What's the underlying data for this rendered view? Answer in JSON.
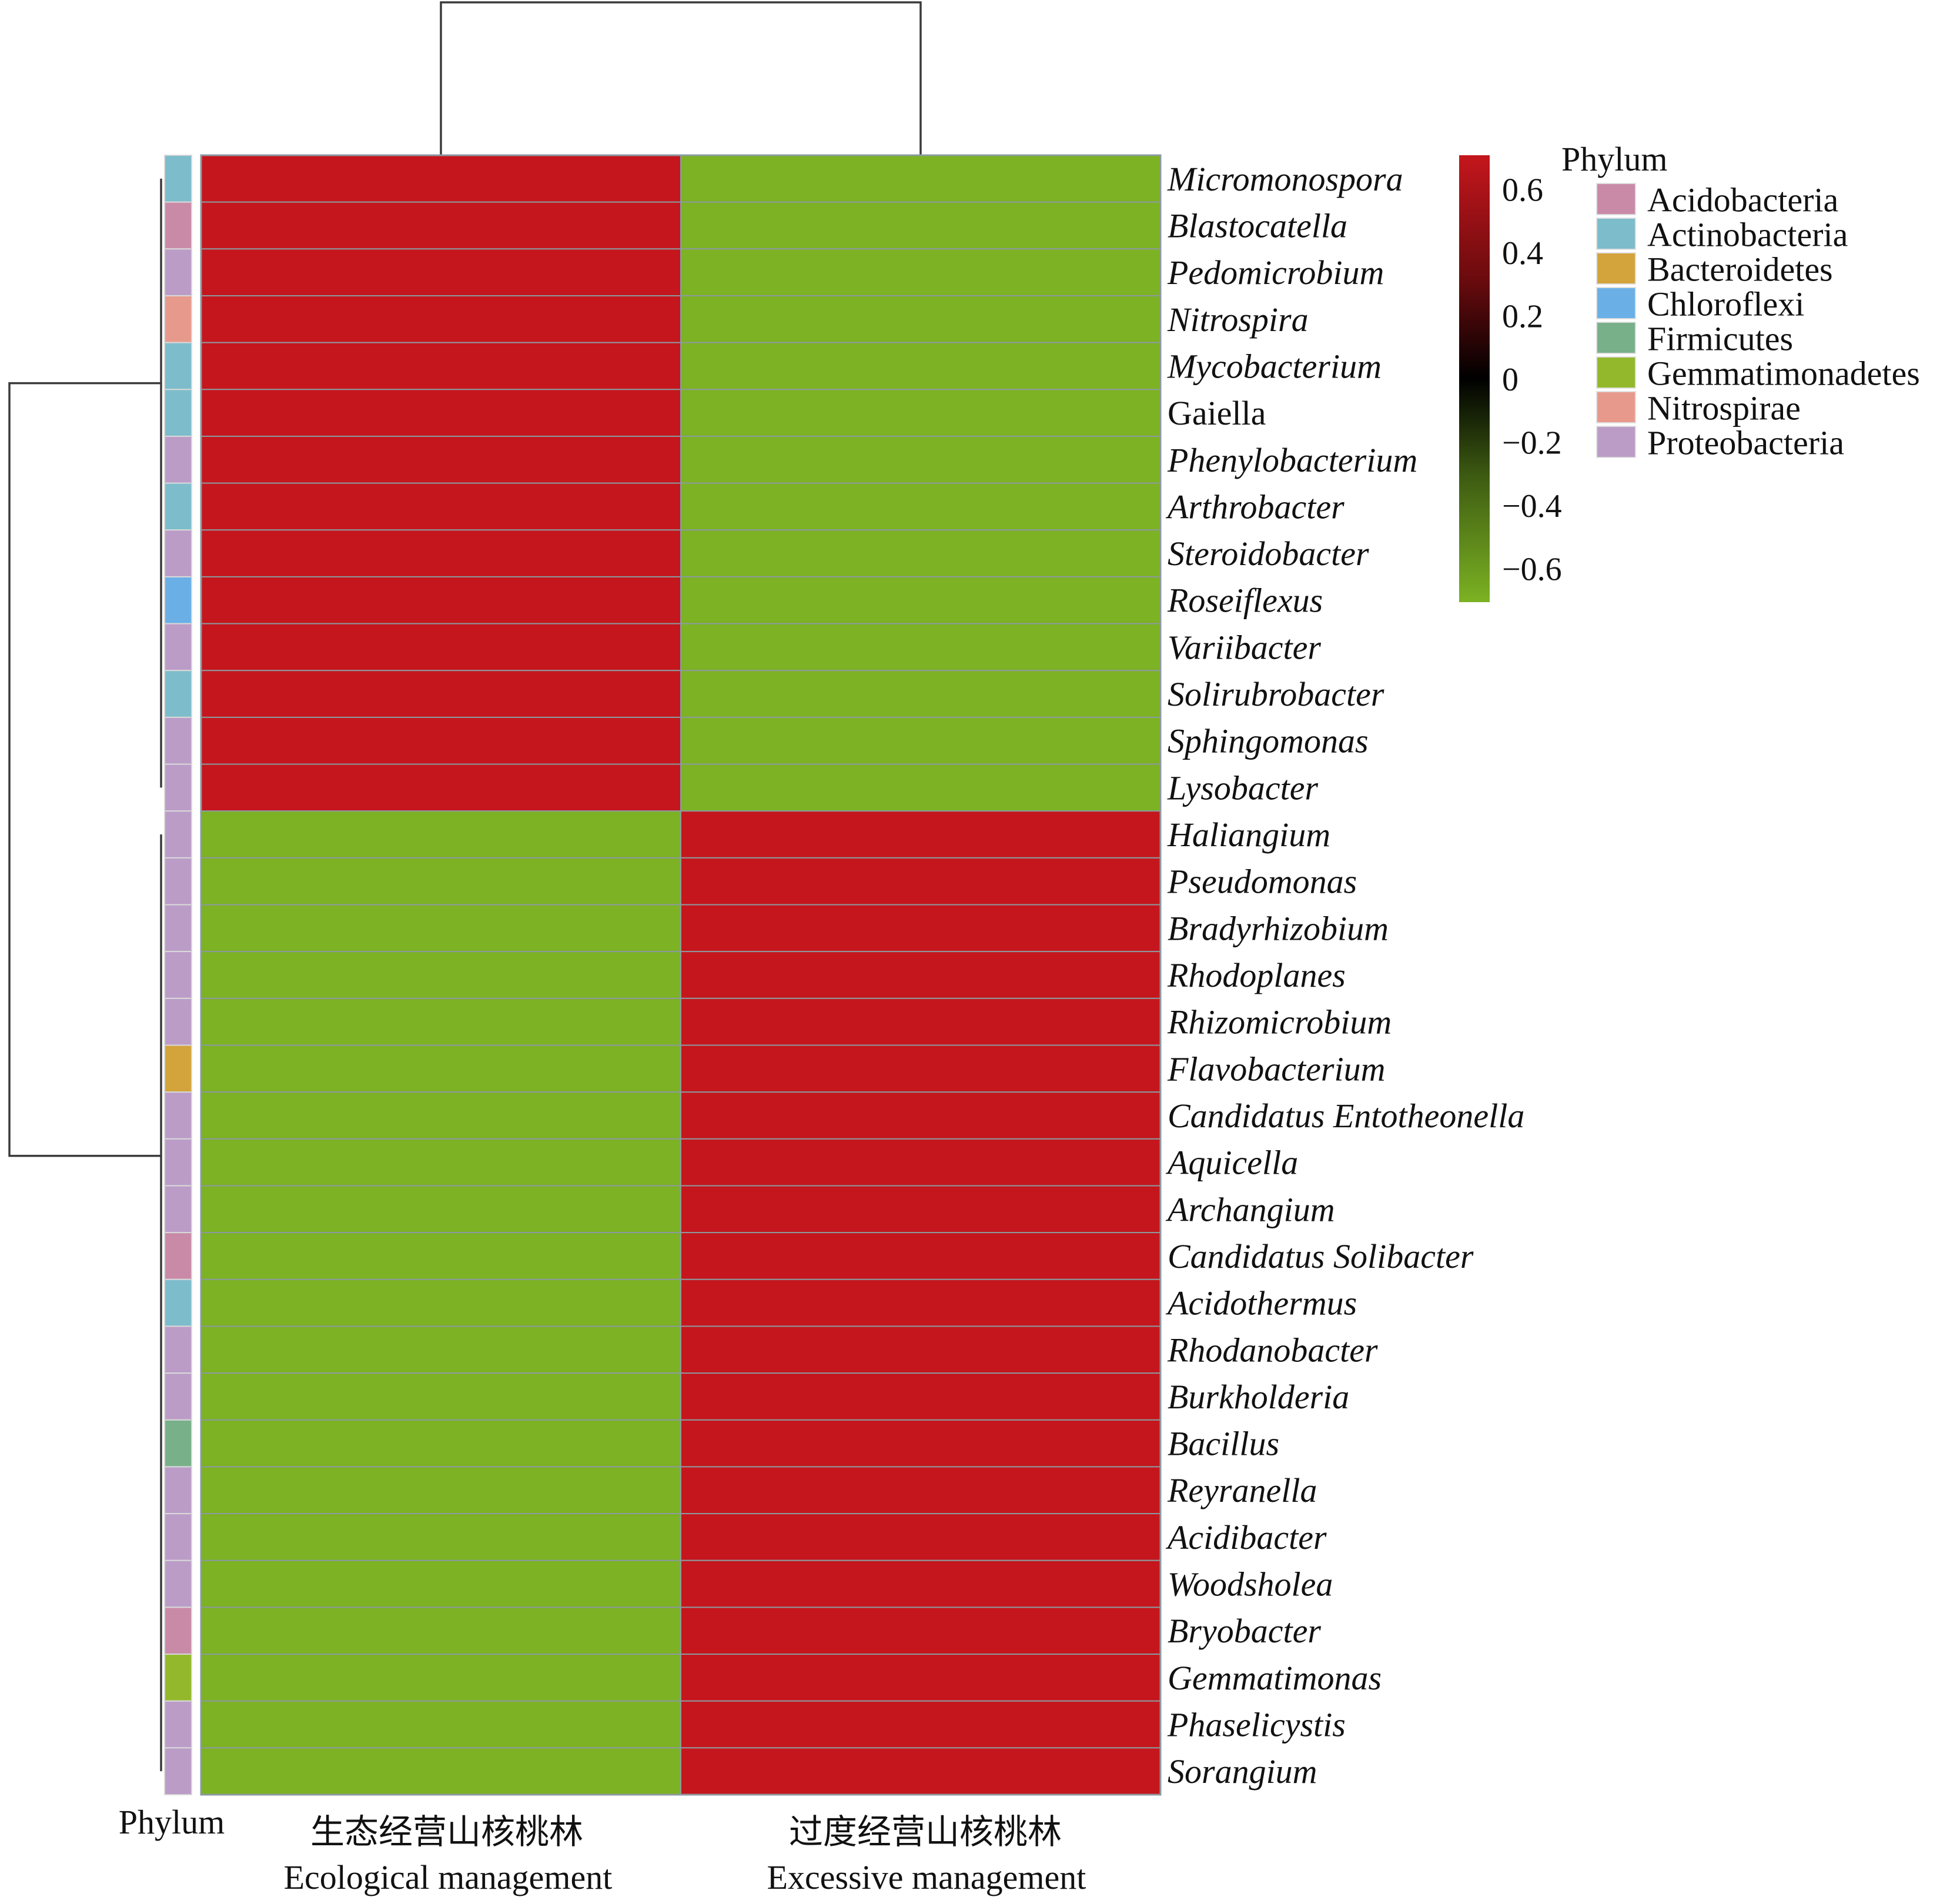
{
  "chart_data": {
    "type": "heatmap",
    "columns": [
      {
        "name_zh": "生态经营山核桃林",
        "name_en": "Ecological management"
      },
      {
        "name_zh": "过度经营山核桃林",
        "name_en": "Excessive management"
      }
    ],
    "rows": [
      {
        "genus": "Micromonospora",
        "italic": true,
        "phylum": "Actinobacteria",
        "values": [
          0.707,
          -0.707
        ]
      },
      {
        "genus": "Blastocatella",
        "italic": true,
        "phylum": "Acidobacteria",
        "values": [
          0.707,
          -0.707
        ]
      },
      {
        "genus": "Pedomicrobium",
        "italic": true,
        "phylum": "Proteobacteria",
        "values": [
          0.707,
          -0.707
        ]
      },
      {
        "genus": "Nitrospira",
        "italic": true,
        "phylum": "Nitrospirae",
        "values": [
          0.707,
          -0.707
        ]
      },
      {
        "genus": "Mycobacterium",
        "italic": true,
        "phylum": "Actinobacteria",
        "values": [
          0.707,
          -0.707
        ]
      },
      {
        "genus": "Gaiella",
        "italic": false,
        "phylum": "Actinobacteria",
        "values": [
          0.707,
          -0.707
        ]
      },
      {
        "genus": "Phenylobacterium",
        "italic": true,
        "phylum": "Proteobacteria",
        "values": [
          0.707,
          -0.707
        ]
      },
      {
        "genus": "Arthrobacter",
        "italic": true,
        "phylum": "Actinobacteria",
        "values": [
          0.707,
          -0.707
        ]
      },
      {
        "genus": "Steroidobacter",
        "italic": true,
        "phylum": "Proteobacteria",
        "values": [
          0.707,
          -0.707
        ]
      },
      {
        "genus": "Roseiflexus",
        "italic": true,
        "phylum": "Chloroflexi",
        "values": [
          0.707,
          -0.707
        ]
      },
      {
        "genus": "Variibacter",
        "italic": true,
        "phylum": "Proteobacteria",
        "values": [
          0.707,
          -0.707
        ]
      },
      {
        "genus": "Solirubrobacter",
        "italic": true,
        "phylum": "Actinobacteria",
        "values": [
          0.707,
          -0.707
        ]
      },
      {
        "genus": "Sphingomonas",
        "italic": true,
        "phylum": "Proteobacteria",
        "values": [
          0.707,
          -0.707
        ]
      },
      {
        "genus": "Lysobacter",
        "italic": true,
        "phylum": "Proteobacteria",
        "values": [
          0.707,
          -0.707
        ]
      },
      {
        "genus": "Haliangium",
        "italic": true,
        "phylum": "Proteobacteria",
        "values": [
          -0.707,
          0.707
        ]
      },
      {
        "genus": "Pseudomonas",
        "italic": true,
        "phylum": "Proteobacteria",
        "values": [
          -0.707,
          0.707
        ]
      },
      {
        "genus": "Bradyrhizobium",
        "italic": true,
        "phylum": "Proteobacteria",
        "values": [
          -0.707,
          0.707
        ]
      },
      {
        "genus": "Rhodoplanes",
        "italic": true,
        "phylum": "Proteobacteria",
        "values": [
          -0.707,
          0.707
        ]
      },
      {
        "genus": "Rhizomicrobium",
        "italic": true,
        "phylum": "Proteobacteria",
        "values": [
          -0.707,
          0.707
        ]
      },
      {
        "genus": "Flavobacterium",
        "italic": true,
        "phylum": "Bacteroidetes",
        "values": [
          -0.707,
          0.707
        ]
      },
      {
        "genus": "Candidatus Entotheonella",
        "italic": true,
        "phylum": "Proteobacteria",
        "values": [
          -0.707,
          0.707
        ]
      },
      {
        "genus": "Aquicella",
        "italic": true,
        "phylum": "Proteobacteria",
        "values": [
          -0.707,
          0.707
        ]
      },
      {
        "genus": "Archangium",
        "italic": true,
        "phylum": "Proteobacteria",
        "values": [
          -0.707,
          0.707
        ]
      },
      {
        "genus": "Candidatus Solibacter",
        "italic": true,
        "phylum": "Acidobacteria",
        "values": [
          -0.707,
          0.707
        ]
      },
      {
        "genus": "Acidothermus",
        "italic": true,
        "phylum": "Actinobacteria",
        "values": [
          -0.707,
          0.707
        ]
      },
      {
        "genus": "Rhodanobacter",
        "italic": true,
        "phylum": "Proteobacteria",
        "values": [
          -0.707,
          0.707
        ]
      },
      {
        "genus": "Burkholderia",
        "italic": true,
        "phylum": "Proteobacteria",
        "values": [
          -0.707,
          0.707
        ]
      },
      {
        "genus": "Bacillus",
        "italic": true,
        "phylum": "Firmicutes",
        "values": [
          -0.707,
          0.707
        ]
      },
      {
        "genus": "Reyranella",
        "italic": true,
        "phylum": "Proteobacteria",
        "values": [
          -0.707,
          0.707
        ]
      },
      {
        "genus": "Acidibacter",
        "italic": true,
        "phylum": "Proteobacteria",
        "values": [
          -0.707,
          0.707
        ]
      },
      {
        "genus": "Woodsholea",
        "italic": true,
        "phylum": "Proteobacteria",
        "values": [
          -0.707,
          0.707
        ]
      },
      {
        "genus": "Bryobacter",
        "italic": true,
        "phylum": "Acidobacteria",
        "values": [
          -0.707,
          0.707
        ]
      },
      {
        "genus": "Gemmatimonas",
        "italic": true,
        "phylum": "Gemmatimonadetes",
        "values": [
          -0.707,
          0.707
        ]
      },
      {
        "genus": "Phaselicystis",
        "italic": true,
        "phylum": "Proteobacteria",
        "values": [
          -0.707,
          0.707
        ]
      },
      {
        "genus": "Sorangium",
        "italic": true,
        "phylum": "Proteobacteria",
        "values": [
          -0.707,
          0.707
        ]
      }
    ],
    "annotation_label": "Phylum",
    "phylum_legend": {
      "title": "Phylum",
      "items": [
        {
          "name": "Acidobacteria",
          "color": "#c98aa8"
        },
        {
          "name": "Actinobacteria",
          "color": "#7dbccb"
        },
        {
          "name": "Bacteroidetes",
          "color": "#d3a43c"
        },
        {
          "name": "Chloroflexi",
          "color": "#6ab0e6"
        },
        {
          "name": "Firmicutes",
          "color": "#78b08a"
        },
        {
          "name": "Gemmatimonadetes",
          "color": "#94b82c"
        },
        {
          "name": "Nitrospirae",
          "color": "#e79a8c"
        },
        {
          "name": "Proteobacteria",
          "color": "#bb9cc7"
        }
      ]
    },
    "color_scale": {
      "ticks": [
        "0.6",
        "0.4",
        "0.2",
        "0",
        "−0.2",
        "−0.4",
        "−0.6"
      ],
      "min": -0.707,
      "max": 0.707,
      "colors": {
        "high": "#c4161c",
        "mid": "#000000",
        "low": "#7cb223"
      }
    },
    "dendrograms": {
      "rows": true,
      "columns": true
    }
  }
}
